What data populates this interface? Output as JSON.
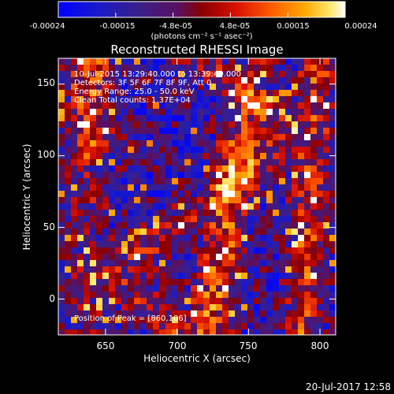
{
  "colorbar": {
    "tick_labels": [
      "-0.00024",
      "-0.00015",
      "-4.8e-05",
      "4.8e-05",
      "0.00015",
      "0.00024"
    ],
    "min": -0.00024,
    "max": 0.00024,
    "unit_label": "(photons cm⁻² s⁻¹ asec⁻²)"
  },
  "chart_data": {
    "type": "heatmap",
    "title": "Reconstructed RHESSI Image",
    "xlabel": "Heliocentric X (arcsec)",
    "ylabel": "Heliocentric Y (arcsec)",
    "xlim": [
      617,
      811
    ],
    "ylim": [
      -25,
      168
    ],
    "x_ticks": [
      650,
      700,
      750,
      800
    ],
    "y_ticks": [
      0,
      50,
      100,
      150
    ],
    "x_tick_labels": [
      "650",
      "700",
      "750",
      "800"
    ],
    "y_tick_labels": [
      "0",
      "50",
      "100",
      "150"
    ],
    "peak": [
      860,
      106
    ],
    "annotations": [
      "10-Jul-2015 13:29:40.000 to 13:39:40.000",
      "Detectors: 3F 5F 6F 7F 8F 9F, Att 0",
      "Energy Range: 25.0 - 50.0 keV",
      "Clean    Total counts: 1.37E+04",
      "Position of Peak = [860,106]"
    ],
    "colormap": "heat (blue-purple-red-orange-yellow-white)"
  },
  "footer": {
    "timestamp": "20-Jul-2017 12:58"
  },
  "colors": {
    "background": "#000000",
    "foreground": "#ffffff"
  }
}
